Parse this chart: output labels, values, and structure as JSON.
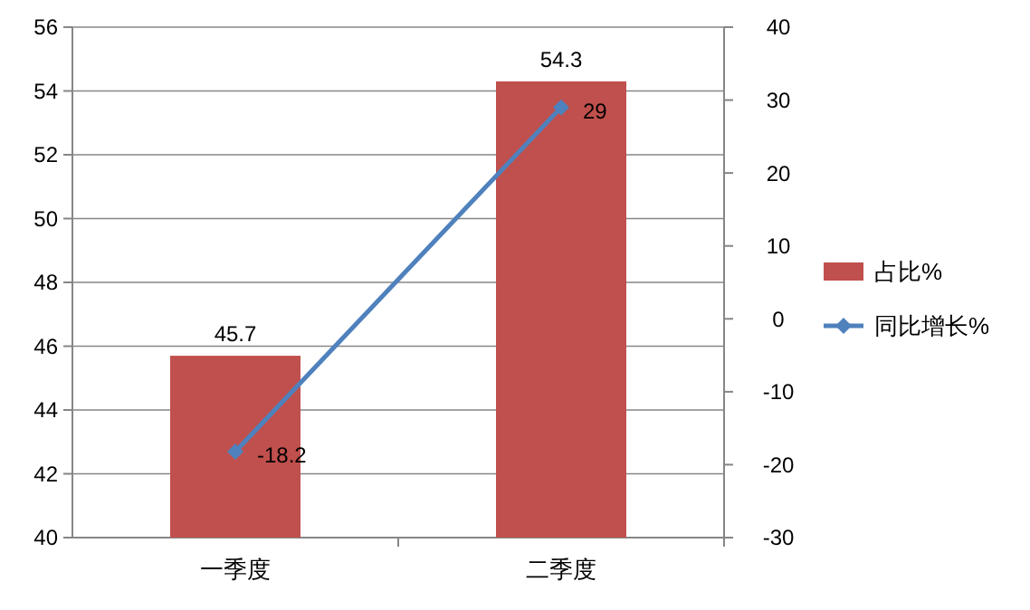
{
  "chart_data": {
    "type": "bar",
    "categories": [
      "一季度",
      "二季度"
    ],
    "series": [
      {
        "name": "占比%",
        "color": "#c0504d",
        "values": [
          45.7,
          54.3
        ]
      },
      {
        "name": "同比增长%",
        "type": "line",
        "axis": "y2",
        "color": "#4f81bd",
        "values": [
          -18.2,
          29
        ],
        "marker": "diamond"
      }
    ],
    "ylim": [
      40,
      56
    ],
    "yticks": [
      40,
      42,
      44,
      46,
      48,
      50,
      52,
      54,
      56
    ],
    "y2lim": [
      -30,
      40
    ],
    "y2ticks": [
      -30,
      -20,
      -10,
      0,
      10,
      20,
      30,
      40
    ],
    "grid": "y",
    "legend": "right",
    "data_labels": true
  }
}
